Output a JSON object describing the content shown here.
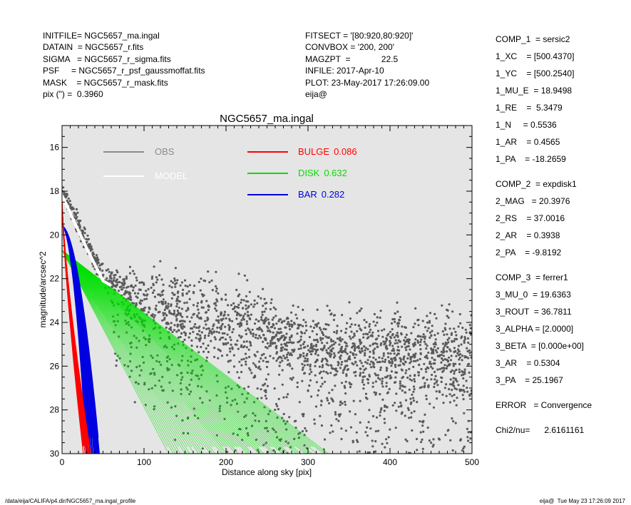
{
  "header_left": [
    "INITFILE= NGC5657_ma.ingal",
    "DATAIN  = NGC5657_r.fits",
    "SIGMA   = NGC5657_r_sigma.fits",
    "PSF     = NGC5657_r_psf_gaussmoffat.fits",
    "MASK    = NGC5657_r_mask.fits",
    "pix (\") =  0.3960"
  ],
  "header_mid": [
    "FITSECT = '[80:920,80:920]'",
    "CONVBOX = '200, 200'",
    "MAGZPT  =             22.5",
    "INFILE: 2017-Apr-10",
    "PLOT: 23-May-2017 17:26:09.00",
    "eija@"
  ],
  "params": [
    "COMP_1  = sersic2",
    "1_XC    = [500.4370]",
    "1_YC    = [500.2540]",
    "1_MU_E  = 18.9498",
    "1_RE    =  5.3479",
    "1_N     = 0.5536",
    "1_AR    = 0.4565",
    "1_PA    = -18.2659",
    "",
    "COMP_2  = expdisk1",
    "2_MAG   = 20.3976",
    "2_RS    = 37.0016",
    "2_AR    = 0.3938",
    "2_PA    = -9.8192",
    "",
    "COMP_3  = ferrer1",
    "3_MU_0  = 19.6363",
    "3_ROUT  = 36.7811",
    "3_ALPHA = [2.0000]",
    "3_BETA  = [0.000e+00]",
    "3_AR    = 0.5304",
    "3_PA    = 25.1967",
    "",
    "ERROR   = Convergence",
    "",
    "Chi2/nu=      2.6161161"
  ],
  "footer_left": "/data/eija/CALIFA/p4.dir/NGC5657_ma.ingal_profile",
  "footer_right": "eija@  Tue May 23 17:26:09 2017",
  "chart_data": {
    "type": "scatter",
    "title": "NGC5657_ma.ingal",
    "xlabel": "Distance along sky [pix]",
    "ylabel": "magnitude/arcsec^2",
    "xlim": [
      0,
      500
    ],
    "ylim": [
      30,
      15
    ],
    "y_inverted": true,
    "x_ticks": [
      "0",
      "100",
      "200",
      "300",
      "400",
      "500"
    ],
    "y_ticks": [
      "16",
      "18",
      "20",
      "22",
      "24",
      "26",
      "28",
      "30"
    ],
    "background": "#e5e5e5",
    "legend": [
      {
        "label": "OBS",
        "color": "#8c8c8c"
      },
      {
        "label": "MODEL",
        "color": "#ffffff"
      },
      {
        "label": "BULGE",
        "value": "0.086",
        "color": "#ff0000"
      },
      {
        "label": "DISK",
        "value": "0.632",
        "color": "#00e000"
      },
      {
        "label": "BAR",
        "value": "0.282",
        "color": "#0000e0"
      }
    ],
    "series": [
      {
        "name": "OBS",
        "color": "#5a5a5a",
        "x": [
          0,
          10,
          20,
          30,
          50,
          100,
          150,
          200,
          250,
          300,
          350,
          400,
          450,
          500
        ],
        "y": [
          18.0,
          18.8,
          19.6,
          20.4,
          21.9,
          23.0,
          23.7,
          24.0,
          24.5,
          25.0,
          25.3,
          25.4,
          25.5,
          25.6
        ]
      },
      {
        "name": "BULGE",
        "color": "#ff0000",
        "x": [
          0,
          5,
          10,
          15,
          20,
          25,
          30
        ],
        "y": [
          18.5,
          21.0,
          23.5,
          25.8,
          27.8,
          29.2,
          30.0
        ]
      },
      {
        "name": "BAR",
        "color": "#0000e0",
        "x": [
          0,
          10,
          20,
          25,
          30,
          35,
          40,
          45
        ],
        "y": [
          19.6,
          19.7,
          20.6,
          22.0,
          24.0,
          26.3,
          28.6,
          30.0
        ]
      },
      {
        "name": "DISK",
        "color": "#00e000",
        "x": [
          0,
          50,
          100,
          130,
          150,
          200,
          250,
          300,
          325
        ],
        "y": [
          20.7,
          21.7,
          22.8,
          23.4,
          23.8,
          25.3,
          26.9,
          28.6,
          30.0
        ]
      }
    ]
  }
}
